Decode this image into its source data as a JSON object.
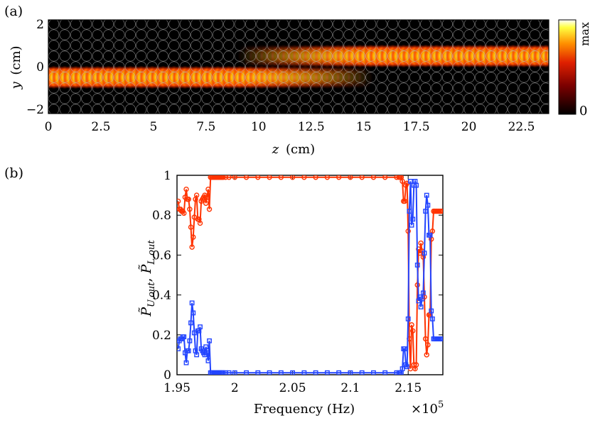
{
  "chart_data": [
    {
      "panel": "(a)",
      "type": "heatmap",
      "xlabel_var": "z",
      "xlabel_unit": "(cm)",
      "ylabel_var": "y",
      "ylabel_unit": "(cm)",
      "xlim": [
        0,
        23.8
      ],
      "ylim": [
        -2.2,
        2.2
      ],
      "xticks": [
        "0",
        "2.5",
        "5",
        "7.5",
        "10",
        "12.5",
        "15",
        "17.5",
        "20",
        "22.5"
      ],
      "xtick_values": [
        0,
        2.5,
        5,
        7.5,
        10,
        12.5,
        15,
        17.5,
        20,
        22.5
      ],
      "yticks": [
        "2",
        "0",
        "−2"
      ],
      "ytick_values": [
        2,
        0,
        -2
      ],
      "colorbar": {
        "max_label": "max",
        "min_label": "0"
      },
      "lattice": {
        "rows": 9,
        "row_spacing_cm": 0.5,
        "col_spacing_cm": 0.52
      },
      "lower_channel_y": -0.5,
      "upper_channel_y": 0.5,
      "transfer_z_range": [
        9,
        15.5
      ]
    },
    {
      "panel": "(b)",
      "type": "line",
      "xlabel": "Frequency (Hz)",
      "x_multiplier": "×10",
      "x_multiplier_exp": "5",
      "ylabel_main": "P̃",
      "ylabel_sub1": "U,out",
      "ylabel_sep": ", ",
      "ylabel_sub2": "L,out",
      "xlim": [
        1.95,
        2.18
      ],
      "ylim": [
        0,
        1
      ],
      "xticks": [
        "1.95",
        "2",
        "2.05",
        "2.1",
        "2.15"
      ],
      "xtick_values": [
        1.95,
        2.0,
        2.05,
        2.1,
        2.15
      ],
      "yticks": [
        "0",
        "0.2",
        "0.4",
        "0.6",
        "0.8",
        "1"
      ],
      "ytick_values": [
        0,
        0.2,
        0.4,
        0.6,
        0.8,
        1.0
      ],
      "x": [
        1.951,
        1.952,
        1.953,
        1.954,
        1.955,
        1.956,
        1.957,
        1.958,
        1.959,
        1.96,
        1.961,
        1.962,
        1.963,
        1.964,
        1.965,
        1.966,
        1.967,
        1.968,
        1.969,
        1.97,
        1.971,
        1.972,
        1.973,
        1.974,
        1.975,
        1.976,
        1.977,
        1.978,
        1.979,
        1.98,
        1.981,
        1.982,
        1.983,
        1.984,
        1.985,
        1.986,
        1.987,
        1.988,
        1.989,
        1.99,
        1.992,
        1.995,
        2.0,
        2.01,
        2.02,
        2.03,
        2.04,
        2.05,
        2.06,
        2.07,
        2.08,
        2.09,
        2.1,
        2.11,
        2.12,
        2.13,
        2.14,
        2.142,
        2.143,
        2.144,
        2.145,
        2.146,
        2.147,
        2.148,
        2.149,
        2.15,
        2.151,
        2.152,
        2.153,
        2.154,
        2.155,
        2.156,
        2.157,
        2.158,
        2.159,
        2.16,
        2.161,
        2.162,
        2.163,
        2.164,
        2.165,
        2.166,
        2.167,
        2.168,
        2.169,
        2.17,
        2.171,
        2.172,
        2.173,
        2.174,
        2.175,
        2.176,
        2.177,
        2.178,
        2.179
      ],
      "series": [
        {
          "name": "P_U,out",
          "color": "#ff3300",
          "marker": "circle",
          "values": [
            0.87,
            0.83,
            0.83,
            0.82,
            0.82,
            0.81,
            0.89,
            0.93,
            0.88,
            0.88,
            0.83,
            0.74,
            0.64,
            0.69,
            0.79,
            0.88,
            0.9,
            0.78,
            0.78,
            0.76,
            0.87,
            0.88,
            0.89,
            0.9,
            0.86,
            0.89,
            0.93,
            0.83,
            0.99,
            0.99,
            0.99,
            0.99,
            0.99,
            0.99,
            0.99,
            0.99,
            0.99,
            0.99,
            0.99,
            0.99,
            0.99,
            0.99,
            0.99,
            0.99,
            0.99,
            0.99,
            0.99,
            0.99,
            0.99,
            0.99,
            0.99,
            0.99,
            0.99,
            0.99,
            0.99,
            0.99,
            0.99,
            0.99,
            0.99,
            0.99,
            0.97,
            0.87,
            0.87,
            0.95,
            0.96,
            0.72,
            0.18,
            0.03,
            0.25,
            0.22,
            0.05,
            0.03,
            0.05,
            0.45,
            0.63,
            0.61,
            0.66,
            0.62,
            0.59,
            0.39,
            0.18,
            0.1,
            0.15,
            0.3,
            0.3,
            0.68,
            0.72,
            0.82,
            0.82,
            0.82,
            0.82,
            0.82,
            0.82,
            0.82,
            0.82
          ]
        },
        {
          "name": "P_L,out",
          "color": "#2244ff",
          "marker": "square",
          "values": [
            0.13,
            0.17,
            0.18,
            0.18,
            0.19,
            0.19,
            0.11,
            0.06,
            0.12,
            0.12,
            0.17,
            0.26,
            0.36,
            0.31,
            0.21,
            0.12,
            0.1,
            0.22,
            0.22,
            0.24,
            0.13,
            0.12,
            0.11,
            0.1,
            0.14,
            0.11,
            0.07,
            0.17,
            0.01,
            0.01,
            0.01,
            0.01,
            0.01,
            0.01,
            0.01,
            0.01,
            0.01,
            0.01,
            0.01,
            0.01,
            0.01,
            0.01,
            0.01,
            0.01,
            0.01,
            0.01,
            0.01,
            0.01,
            0.01,
            0.01,
            0.01,
            0.01,
            0.01,
            0.01,
            0.01,
            0.01,
            0.01,
            0.01,
            0.01,
            0.01,
            0.03,
            0.13,
            0.13,
            0.05,
            0.04,
            0.28,
            0.82,
            0.97,
            0.75,
            0.78,
            0.95,
            0.97,
            0.95,
            0.55,
            0.37,
            0.39,
            0.34,
            0.38,
            0.41,
            0.61,
            0.82,
            0.9,
            0.85,
            0.7,
            0.7,
            0.32,
            0.28,
            0.18,
            0.18,
            0.18,
            0.18,
            0.18,
            0.18,
            0.18,
            0.18
          ]
        }
      ]
    }
  ]
}
